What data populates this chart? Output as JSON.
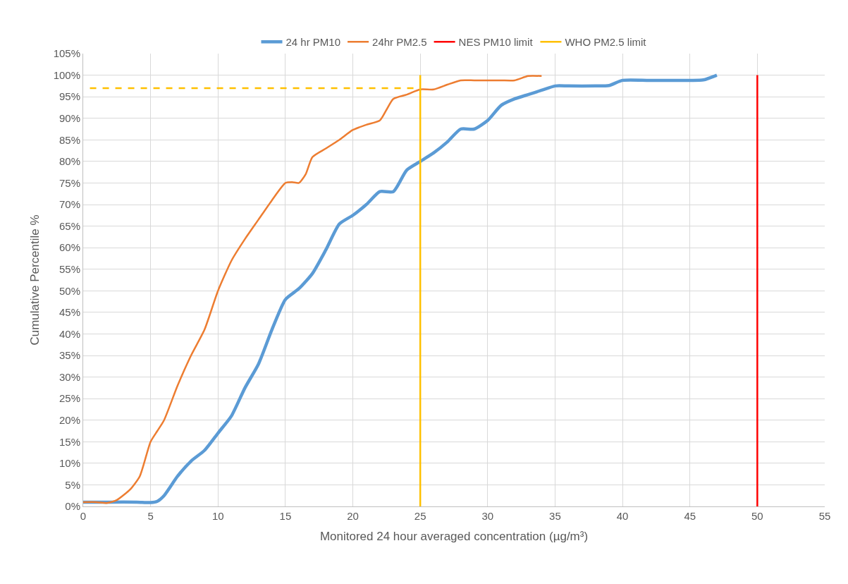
{
  "chart_data": {
    "type": "line",
    "xlabel": "Monitored 24 hour averaged concentration (µg/m³)",
    "ylabel": "Cumulative Percentile %",
    "xlim": [
      0,
      55
    ],
    "xticks": [
      0,
      5,
      10,
      15,
      20,
      25,
      30,
      35,
      40,
      45,
      50,
      55
    ],
    "ylim": [
      0,
      105
    ],
    "yticks": [
      {
        "value": 0,
        "label": "0%"
      },
      {
        "value": 5,
        "label": "5%"
      },
      {
        "value": 10,
        "label": "10%"
      },
      {
        "value": 15,
        "label": "15%"
      },
      {
        "value": 20,
        "label": "20%"
      },
      {
        "value": 25,
        "label": "25%"
      },
      {
        "value": 30,
        "label": "30%"
      },
      {
        "value": 35,
        "label": "35%"
      },
      {
        "value": 40,
        "label": "40%"
      },
      {
        "value": 45,
        "label": "45%"
      },
      {
        "value": 50,
        "label": "50%"
      },
      {
        "value": 55,
        "label": "55%"
      },
      {
        "value": 60,
        "label": "60%"
      },
      {
        "value": 65,
        "label": "65%"
      },
      {
        "value": 70,
        "label": "70%"
      },
      {
        "value": 75,
        "label": "75%"
      },
      {
        "value": 80,
        "label": "80%"
      },
      {
        "value": 85,
        "label": "85%"
      },
      {
        "value": 90,
        "label": "90%"
      },
      {
        "value": 95,
        "label": "95%"
      },
      {
        "value": 100,
        "label": "100%"
      },
      {
        "value": 105,
        "label": "105%"
      }
    ],
    "grid": true,
    "legend": "top",
    "marker": "none",
    "series": [
      {
        "name": "24 hr PM10",
        "color": "#5b9bd5",
        "x": [
          0,
          2,
          4,
          5,
          5.5,
          6,
          7,
          8,
          9,
          10,
          11,
          12,
          13,
          14,
          15,
          16,
          17,
          18,
          19,
          20,
          21,
          22,
          23,
          24,
          25,
          26,
          27,
          28,
          29,
          30,
          31,
          32,
          33,
          34,
          35,
          36,
          38,
          39,
          40,
          42,
          45,
          46,
          47
        ],
        "values": [
          1,
          1,
          1,
          0.9,
          1.2,
          2.5,
          7,
          10.5,
          13,
          17,
          21,
          27.5,
          33,
          41,
          48,
          50.5,
          54,
          59.5,
          65.5,
          67.5,
          70,
          73,
          73,
          78,
          80,
          82,
          84.5,
          87.5,
          87.5,
          89.5,
          93,
          94.5,
          95.5,
          96.5,
          97.5,
          97.5,
          97.5,
          97.6,
          98.8,
          98.8,
          98.8,
          98.9,
          100
        ]
      },
      {
        "name": "24hr PM2.5",
        "color": "#ed7d31",
        "x": [
          0,
          1,
          1.8,
          2.5,
          3.5,
          4.2,
          5,
          5.5,
          6,
          7,
          8,
          9,
          10,
          11,
          12,
          13,
          14,
          15,
          15.5,
          16,
          16.5,
          17,
          18,
          19,
          20,
          21,
          22,
          22.5,
          23,
          24,
          25,
          26,
          27,
          28,
          29,
          30,
          31,
          32,
          33,
          34
        ],
        "values": [
          1,
          1,
          0.8,
          1.5,
          4,
          7,
          15,
          17.5,
          20,
          28,
          35,
          41,
          50,
          57,
          62,
          66.5,
          71,
          75,
          75.2,
          75,
          77,
          81,
          83,
          85,
          87.3,
          88.5,
          89.5,
          92,
          94.5,
          95.5,
          96.7,
          96.7,
          97.8,
          98.8,
          98.8,
          98.8,
          98.8,
          98.8,
          99.8,
          99.8
        ]
      },
      {
        "name": "NES PM10 limit",
        "color": "#ff0000",
        "x": [
          50,
          50
        ],
        "values": [
          0,
          100
        ]
      },
      {
        "name": "WHO PM2.5 limit",
        "color": "#ffc000",
        "x": [
          25,
          25
        ],
        "values": [
          0,
          100
        ]
      },
      {
        "color": "#ffc000",
        "line_style": "dashed",
        "x": [
          0.5,
          25
        ],
        "values": [
          97,
          97
        ]
      }
    ]
  }
}
